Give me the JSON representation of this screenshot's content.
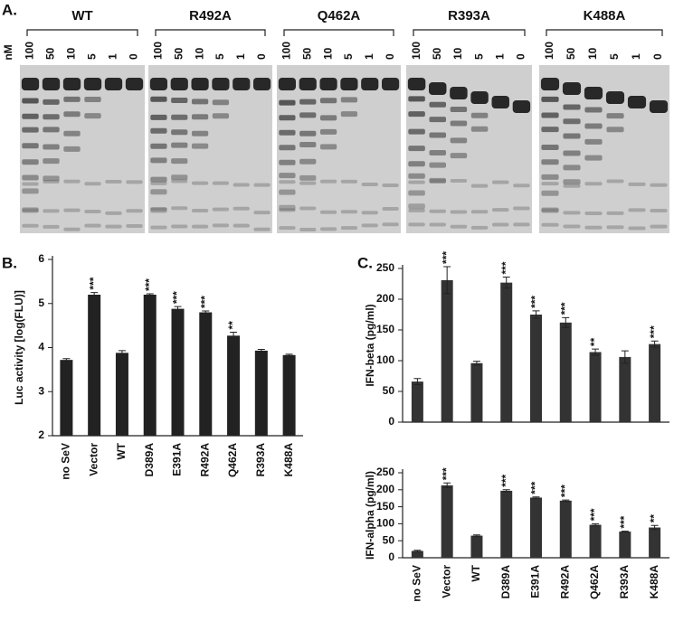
{
  "panel_a": {
    "label": "A.",
    "unit": "nM",
    "gels": [
      {
        "name": "WT",
        "lanes": [
          100,
          50,
          10,
          5,
          1,
          0
        ]
      },
      {
        "name": "R492A",
        "lanes": [
          100,
          50,
          10,
          5,
          1,
          0
        ]
      },
      {
        "name": "Q462A",
        "lanes": [
          100,
          50,
          10,
          5,
          1,
          0
        ]
      },
      {
        "name": "R393A",
        "lanes": [
          100,
          50,
          10,
          5,
          1,
          0
        ]
      },
      {
        "name": "K488A",
        "lanes": [
          100,
          50,
          10,
          5,
          1,
          0
        ]
      }
    ]
  },
  "chart_data": [
    {
      "type": "bar",
      "panel_label": "B.",
      "ylabel": "Luc activity [log(FLU)]",
      "categories": [
        "no SeV",
        "Vector",
        "WT",
        "D389A",
        "E391A",
        "R492A",
        "Q462A",
        "R393A",
        "K488A"
      ],
      "values": [
        3.72,
        5.2,
        3.88,
        5.2,
        4.88,
        4.8,
        4.27,
        3.93,
        3.83
      ],
      "errors": [
        0.03,
        0.05,
        0.05,
        0.02,
        0.05,
        0.03,
        0.08,
        0.03,
        0.02
      ],
      "annotations": [
        null,
        "***",
        null,
        "***",
        "***",
        "***",
        "**",
        null,
        null
      ],
      "color": "#222222",
      "ylim": [
        2,
        6
      ],
      "yticks": [
        2,
        3,
        4,
        5,
        6
      ]
    },
    {
      "type": "bar",
      "panel_label": "C.",
      "ylabel": "IFN-beta (pg/ml)",
      "values": [
        66,
        231,
        96,
        227,
        175,
        162,
        114,
        106,
        127
      ],
      "errors": [
        5,
        22,
        3,
        9,
        6,
        8,
        5,
        10,
        5
      ],
      "annotations": [
        null,
        "***",
        null,
        "***",
        "***",
        "***",
        "**",
        null,
        "***"
      ],
      "color": "#333333",
      "ylim": [
        0,
        250
      ],
      "yticks": [
        0,
        50,
        100,
        150,
        200,
        250
      ]
    },
    {
      "type": "bar",
      "ylabel": "IFN-alpha (pg/ml)",
      "categories": [
        "no SeV",
        "Vector",
        "WT",
        "D389A",
        "E391A",
        "R492A",
        "Q462A",
        "R393A",
        "K488A"
      ],
      "values": [
        20,
        213,
        65,
        197,
        177,
        168,
        97,
        77,
        89
      ],
      "errors": [
        2,
        7,
        2,
        3,
        2,
        2,
        3,
        1,
        6
      ],
      "annotations": [
        null,
        "***",
        null,
        "***",
        "***",
        "***",
        "***",
        "***",
        "**"
      ],
      "color": "#333333",
      "ylim": [
        0,
        250
      ],
      "yticks": [
        0,
        50,
        100,
        150,
        200,
        250
      ]
    }
  ]
}
